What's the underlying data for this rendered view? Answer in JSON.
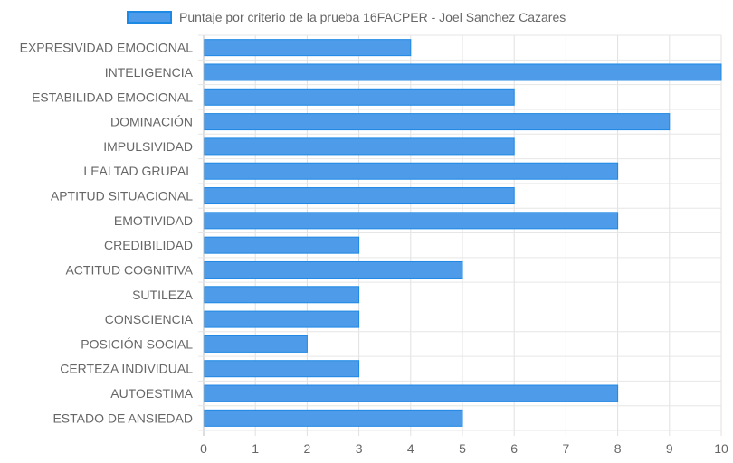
{
  "chart_data": {
    "type": "bar",
    "orientation": "horizontal",
    "title": "",
    "legend": "top",
    "categories": [
      "EXPRESIVIDAD EMOCIONAL",
      "INTELIGENCIA",
      "ESTABILIDAD EMOCIONAL",
      "DOMINACIÓN",
      "IMPULSIVIDAD",
      "LEALTAD GRUPAL",
      "APTITUD SITUACIONAL",
      "EMOTIVIDAD",
      "CREDIBILIDAD",
      "ACTITUD COGNITIVA",
      "SUTILEZA",
      "CONSCIENCIA",
      "POSICIÓN SOCIAL",
      "CERTEZA INDIVIDUAL",
      "AUTOESTIMA",
      "ESTADO DE ANSIEDAD"
    ],
    "series": [
      {
        "name": "Puntaje por criterio de la prueba 16FACPER - Joel Sanchez Cazares",
        "values": [
          4,
          10,
          6,
          9,
          6,
          8,
          6,
          8,
          3,
          5,
          3,
          3,
          2,
          3,
          8,
          5
        ]
      }
    ],
    "xlim": [
      0,
      10
    ],
    "xticks": [
      "0",
      "1",
      "2",
      "3",
      "4",
      "5",
      "6",
      "7",
      "8",
      "9",
      "10"
    ],
    "grid": true,
    "colors": {
      "bar_fill": "#4d9be9",
      "bar_border": "#1e88e5",
      "grid": "#e6e6e6"
    }
  }
}
